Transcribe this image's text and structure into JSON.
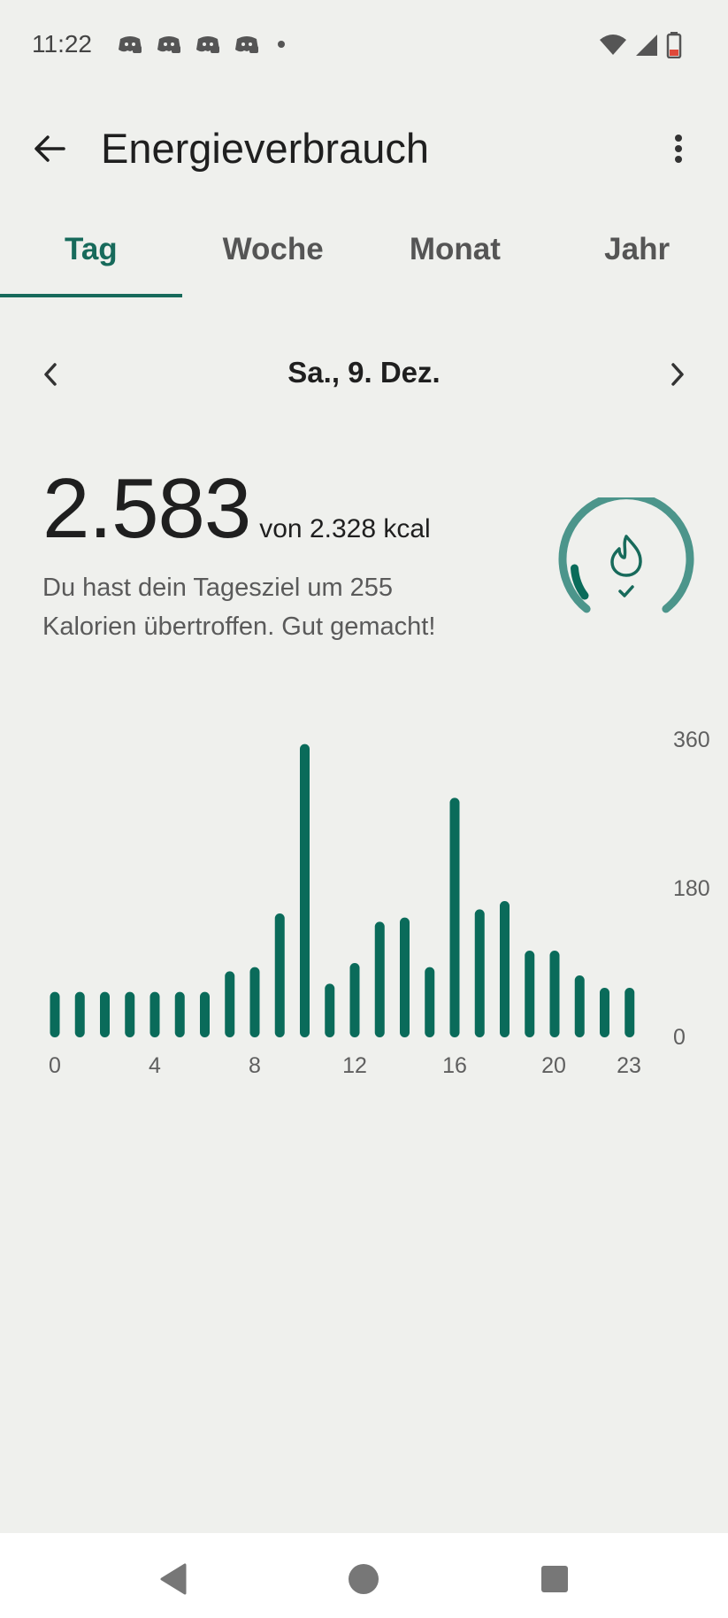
{
  "status_bar": {
    "time": "11:22",
    "notification_icons": [
      "discord-icon",
      "discord-icon",
      "discord-icon",
      "discord-icon"
    ],
    "system_icons": [
      "wifi-icon",
      "cell-signal-icon",
      "battery-low-icon"
    ]
  },
  "app_bar": {
    "title": "Energieverbrauch",
    "back_icon": "arrow-back-icon",
    "more_icon": "more-vert-icon"
  },
  "tabs": [
    {
      "label": "Tag",
      "active": true
    },
    {
      "label": "Woche",
      "active": false
    },
    {
      "label": "Monat",
      "active": false
    },
    {
      "label": "Jahr",
      "active": false
    }
  ],
  "date_nav": {
    "label": "Sa., 9. Dez."
  },
  "summary": {
    "value": "2.583",
    "goal_text": "von 2.328 kcal",
    "message": "Du hast dein Tagesziel um 255 Kalorien übertroffen. Gut gemacht!",
    "ring_icon": "flame-icon",
    "ring_check_icon": "check-icon"
  },
  "colors": {
    "accent": "#176a5b",
    "ring": "#4c958b",
    "bar": "#0a6b5a",
    "background": "#eff0ed"
  },
  "chart_data": {
    "type": "bar",
    "title": "",
    "xlabel": "",
    "ylabel": "",
    "ylim": [
      0,
      360
    ],
    "y_ticks": [
      "360",
      "180",
      "0"
    ],
    "x_ticks": [
      "0",
      "4",
      "8",
      "12",
      "16",
      "20",
      "23"
    ],
    "categories": [
      0,
      1,
      2,
      3,
      4,
      5,
      6,
      7,
      8,
      9,
      10,
      11,
      12,
      13,
      14,
      15,
      16,
      17,
      18,
      19,
      20,
      21,
      22,
      23
    ],
    "values": [
      55,
      55,
      55,
      55,
      55,
      55,
      55,
      80,
      85,
      150,
      355,
      65,
      90,
      140,
      145,
      85,
      290,
      155,
      165,
      105,
      105,
      75,
      60,
      60
    ],
    "grid": false
  }
}
